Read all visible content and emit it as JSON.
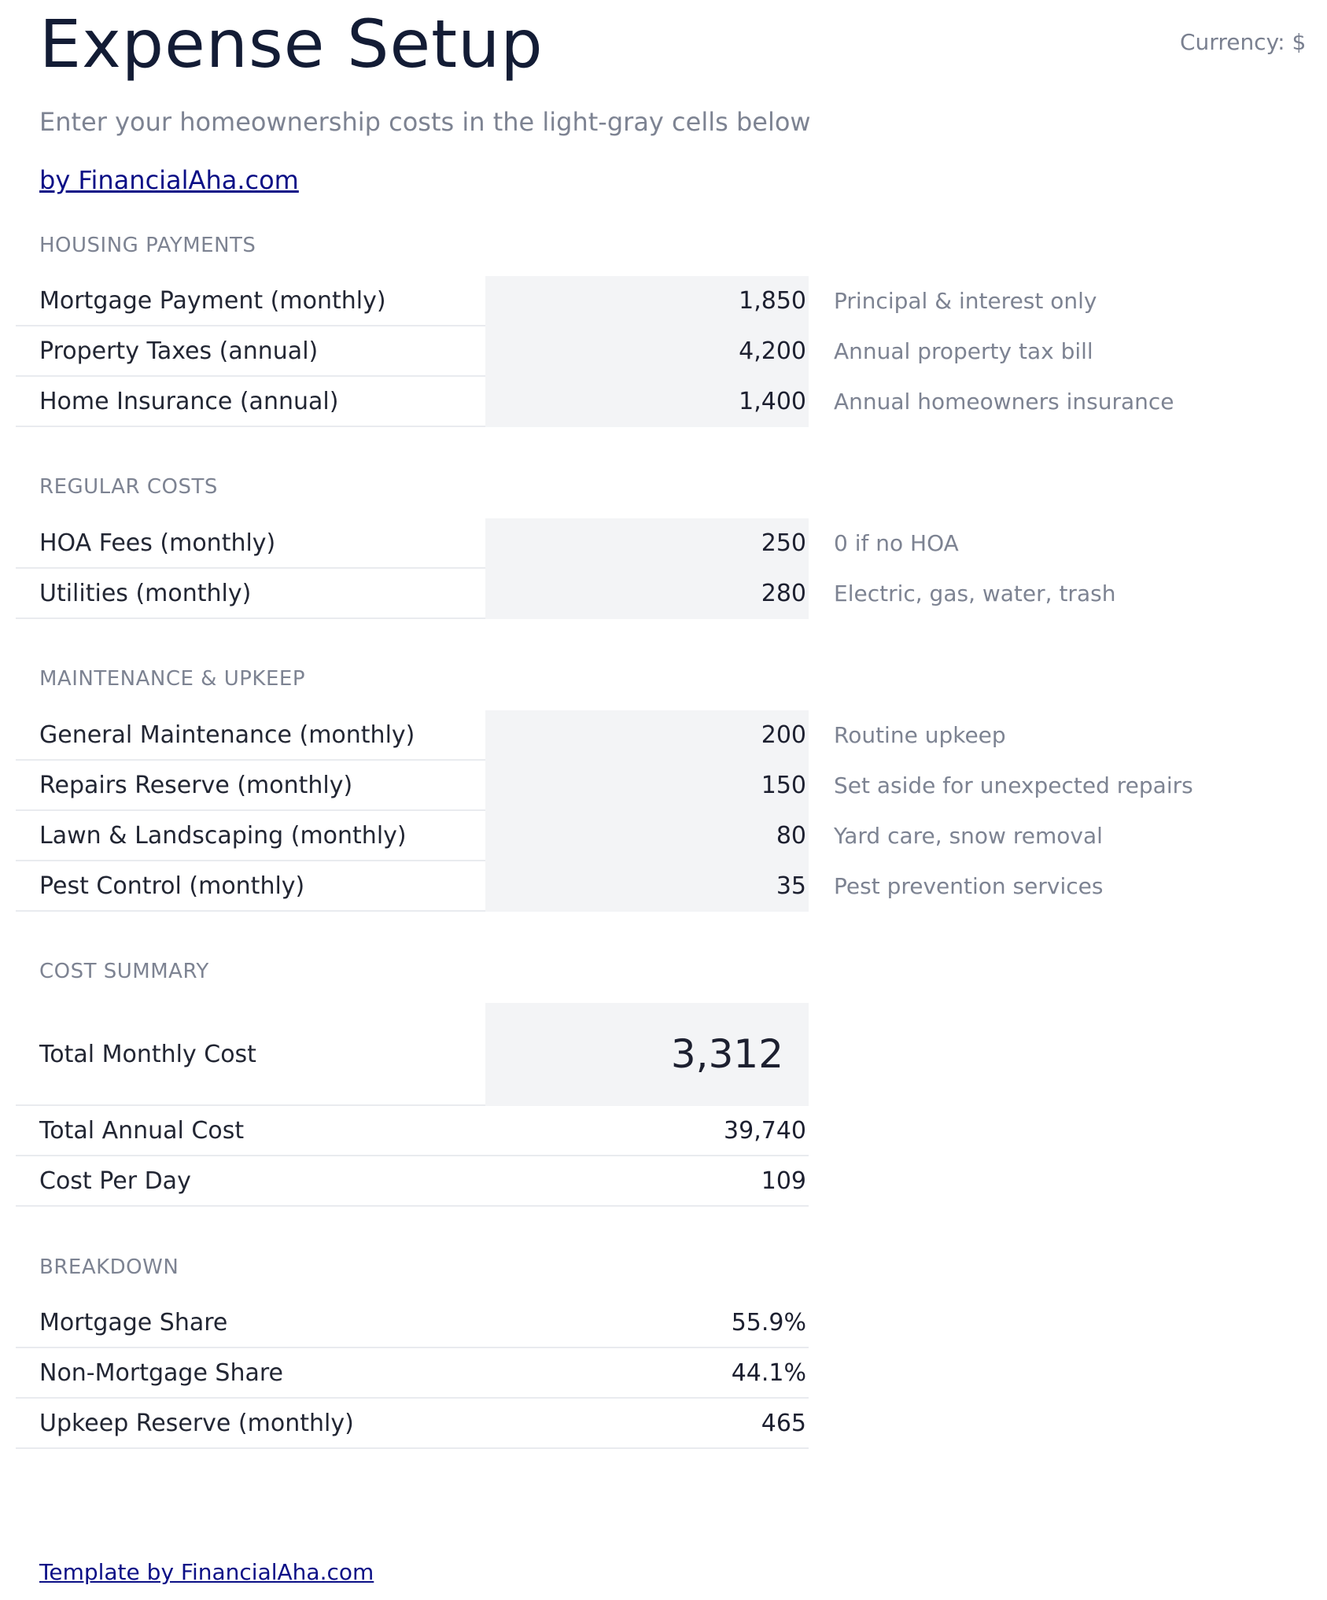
{
  "header": {
    "title": "Expense Setup",
    "currency": "Currency: $",
    "subtitle": "Enter your homeownership costs in the light-gray cells below",
    "byline": "by FinancialAha.com"
  },
  "housing": {
    "heading": "HOUSING PAYMENTS",
    "rows": [
      {
        "label": "Mortgage Payment (monthly)",
        "value": "1,850",
        "note": "Principal & interest only"
      },
      {
        "label": "Property Taxes (annual)",
        "value": "4,200",
        "note": "Annual property tax bill"
      },
      {
        "label": "Home Insurance (annual)",
        "value": "1,400",
        "note": "Annual homeowners insurance"
      }
    ]
  },
  "regular": {
    "heading": "REGULAR COSTS",
    "rows": [
      {
        "label": "HOA Fees (monthly)",
        "value": "250",
        "note": "0 if no HOA"
      },
      {
        "label": "Utilities (monthly)",
        "value": "280",
        "note": "Electric, gas, water, trash"
      }
    ]
  },
  "maintenance": {
    "heading": "MAINTENANCE & UPKEEP",
    "rows": [
      {
        "label": "General Maintenance (monthly)",
        "value": "200",
        "note": "Routine upkeep"
      },
      {
        "label": "Repairs Reserve (monthly)",
        "value": "150",
        "note": "Set aside for unexpected repairs"
      },
      {
        "label": "Lawn & Landscaping (monthly)",
        "value": "80",
        "note": "Yard care, snow removal"
      },
      {
        "label": "Pest Control (monthly)",
        "value": "35",
        "note": "Pest prevention services"
      }
    ]
  },
  "summary": {
    "heading": "COST SUMMARY",
    "rows": [
      {
        "label": "Total Monthly Cost",
        "value": "3,312"
      },
      {
        "label": "Total Annual Cost",
        "value": "39,740"
      },
      {
        "label": "Cost Per Day",
        "value": "109"
      }
    ]
  },
  "breakdown": {
    "heading": "BREAKDOWN",
    "rows": [
      {
        "label": "Mortgage Share",
        "value": "55.9%"
      },
      {
        "label": "Non-Mortgage Share",
        "value": "44.1%"
      },
      {
        "label": "Upkeep Reserve (monthly)",
        "value": "465"
      }
    ]
  },
  "footer": {
    "link": "Template by FinancialAha.com"
  }
}
